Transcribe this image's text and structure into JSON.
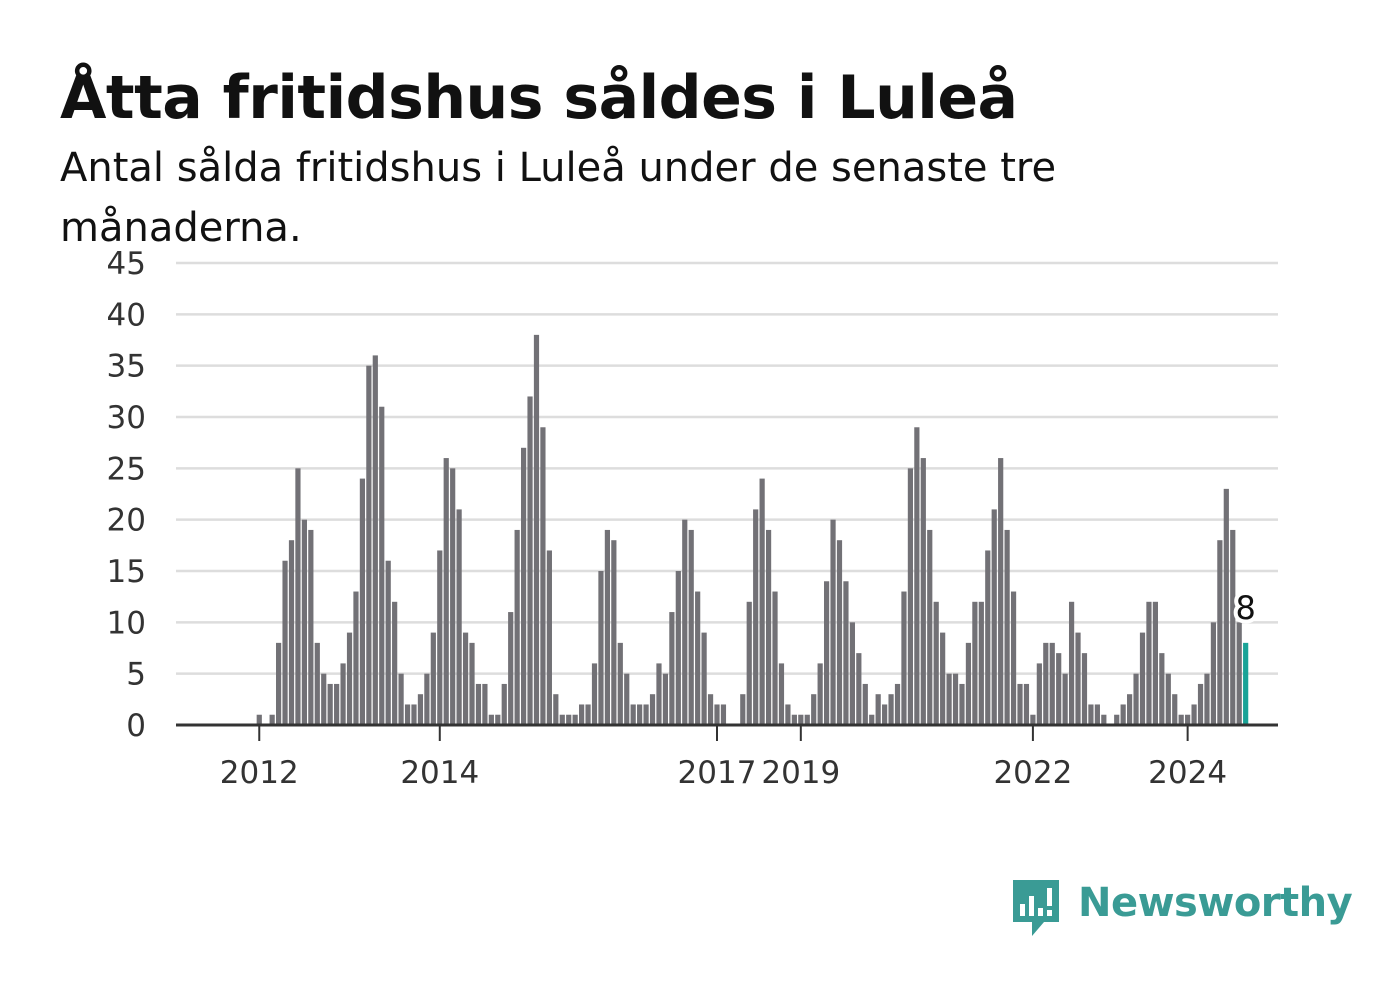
{
  "header": {
    "title": "Åtta fritidshus såldes i Luleå",
    "subtitle": "Antal sålda fritidshus i Luleå under de senaste tre månaderna."
  },
  "brand": {
    "name": "Newsworthy",
    "icon": "newsworthy-logo-icon",
    "color": "#3a9b95"
  },
  "chart_data": {
    "type": "bar",
    "start": "2011-01",
    "y_ticks": [
      0,
      5,
      10,
      15,
      20,
      25,
      30,
      35,
      40,
      45
    ],
    "ylim": [
      0,
      45
    ],
    "x_ticks": [
      {
        "label": "2012",
        "month": "2012-01"
      },
      {
        "label": "2014",
        "month": "2014-05"
      },
      {
        "label": "2017",
        "month": "2017-12"
      },
      {
        "label": "2019",
        "month": "2019-01"
      },
      {
        "label": "2022",
        "month": "2022-01"
      },
      {
        "label": "2024",
        "month": "2024-01"
      }
    ],
    "values": [
      0,
      0,
      0,
      0,
      0,
      0,
      0,
      0,
      0,
      0,
      0,
      0,
      1,
      0,
      1,
      8,
      16,
      18,
      25,
      20,
      19,
      8,
      5,
      4,
      4,
      6,
      9,
      13,
      24,
      35,
      36,
      31,
      16,
      12,
      5,
      2,
      2,
      3,
      5,
      9,
      17,
      26,
      25,
      21,
      9,
      8,
      4,
      4,
      1,
      1,
      4,
      11,
      19,
      27,
      32,
      38,
      29,
      17,
      3,
      1,
      1,
      1,
      2,
      2,
      6,
      15,
      19,
      18,
      8,
      5,
      2,
      2,
      2,
      3,
      6,
      5,
      11,
      15,
      20,
      19,
      13,
      9,
      3,
      2,
      2,
      0,
      0,
      3,
      12,
      21,
      24,
      19,
      13,
      6,
      2,
      1,
      1,
      1,
      3,
      6,
      14,
      20,
      18,
      14,
      10,
      7,
      4,
      1,
      3,
      2,
      3,
      4,
      13,
      25,
      29,
      26,
      19,
      12,
      9,
      5,
      5,
      4,
      8,
      12,
      12,
      17,
      21,
      26,
      19,
      13,
      4,
      4,
      1,
      6,
      8,
      8,
      7,
      5,
      12,
      9,
      7,
      2,
      2,
      1,
      0,
      1,
      2,
      3,
      5,
      9,
      12,
      12,
      7,
      5,
      3,
      1,
      1,
      2,
      4,
      5,
      10,
      18,
      23,
      19,
      10,
      8
    ],
    "highlight_last": true,
    "last_label": "8",
    "colors": {
      "bar": "#727176",
      "highlight": "#1aa397",
      "grid": "#dddddd",
      "axis": "#333333"
    }
  }
}
